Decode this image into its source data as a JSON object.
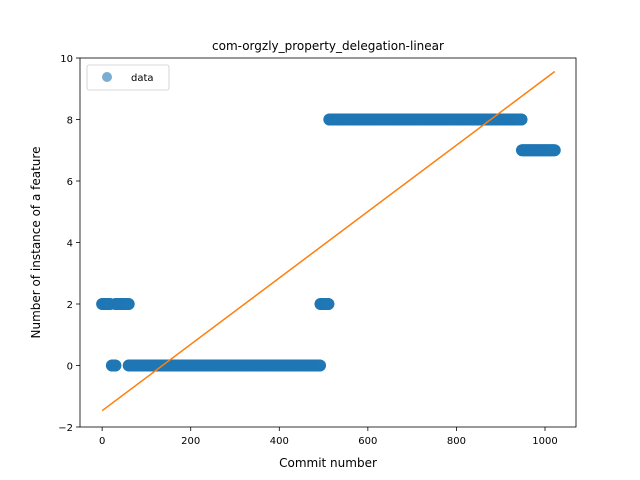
{
  "chart_data": {
    "type": "scatter",
    "title": "com-orgzly_property_delegation-linear",
    "xlabel": "Commit number",
    "ylabel": "Number of instance of a feature",
    "xlim": [
      -50,
      1070
    ],
    "ylim": [
      -2,
      10
    ],
    "xticks": [
      0,
      200,
      400,
      600,
      800,
      1000
    ],
    "yticks": [
      -2,
      0,
      2,
      4,
      6,
      8,
      10
    ],
    "legend": {
      "position": "top-left",
      "entries": [
        "data"
      ]
    },
    "series": [
      {
        "name": "data",
        "kind": "points",
        "color": "#1f77b4",
        "segments": [
          {
            "x_start": 0,
            "x_end": 18,
            "y": 2
          },
          {
            "x_start": 22,
            "x_end": 30,
            "y": 0
          },
          {
            "x_start": 30,
            "x_end": 60,
            "y": 2
          },
          {
            "x_start": 60,
            "x_end": 492,
            "y": 0
          },
          {
            "x_start": 493,
            "x_end": 512,
            "y": 2
          },
          {
            "x_start": 513,
            "x_end": 947,
            "y": 8
          },
          {
            "x_start": 948,
            "x_end": 1022,
            "y": 7
          }
        ]
      },
      {
        "kind": "line",
        "color": "#ff7f0e",
        "x": [
          0,
          1022
        ],
        "y": [
          -1.47,
          9.56
        ]
      }
    ]
  }
}
